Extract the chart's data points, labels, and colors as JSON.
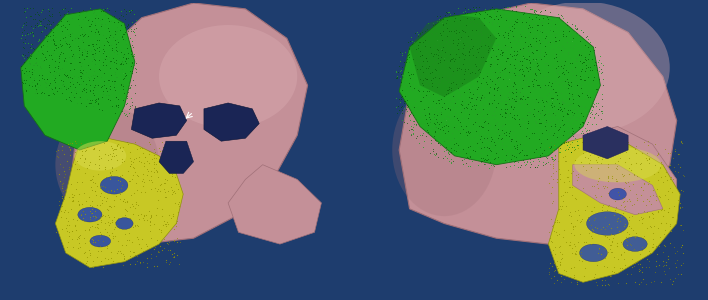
{
  "figure_width": 7.08,
  "figure_height": 3.0,
  "dpi": 100,
  "bg_color": "#1e3d6e",
  "skull_base": "#c49098",
  "skull_light": "#d8aab0",
  "skull_dark": "#a07078",
  "implant_base": "#22aa22",
  "implant_dark": "#157015",
  "implant_light": "#44cc44",
  "jaw_base": "#c8c825",
  "jaw_dark": "#909010",
  "jaw_light": "#dada50",
  "blue_cavity": "#2a4aaa",
  "dark_cavity": "#1a2850"
}
